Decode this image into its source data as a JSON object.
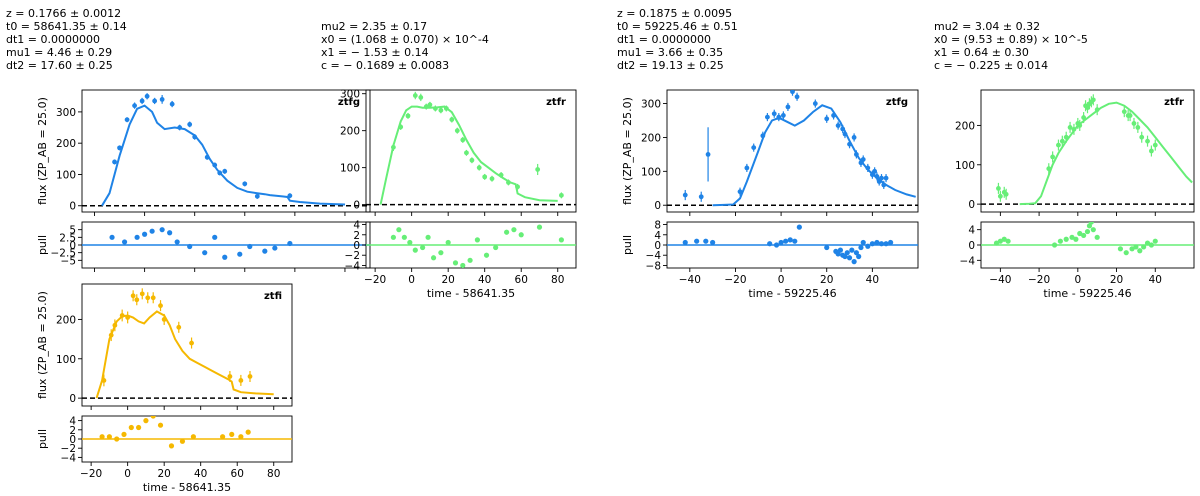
{
  "figures": [
    {
      "fit_params_left": [
        "z = 0.1766 ± 0.0012",
        "t0 = 58641.35 ± 0.14",
        "dt1 = 0.0000000",
        "mu1 = 4.46 ± 0.29",
        "dt2 = 17.60 ± 0.25"
      ],
      "fit_params_right": [
        "mu2 = 2.35 ± 0.17",
        "x0 = (1.068 ± 0.070) × 10^-4",
        "x1 = − 1.53 ± 0.14",
        "c = − 0.1689 ± 0.0083"
      ],
      "xlabel": "time - 58641.35",
      "ylabel": "flux (ZP_AB = 25.0)",
      "pull_label": "pull"
    },
    {
      "fit_params_left": [
        "z = 0.1875 ± 0.0095",
        "t0 = 59225.46 ± 0.51",
        "dt1 = 0.0000000",
        "mu1 = 3.66 ± 0.35",
        "dt2 = 19.13 ± 0.25"
      ],
      "fit_params_right": [
        "mu2 = 3.04 ± 0.32",
        "x0 = (9.53 ± 0.89) × 10^-5",
        "x1 = 0.64 ± 0.30",
        "c = − 0.225 ± 0.014"
      ],
      "xlabel": "time - 59225.46",
      "ylabel": "flux (ZP_AB = 25.0)",
      "pull_label": "pull"
    }
  ],
  "colors": {
    "ztfg": "#1f83e6",
    "ztfr": "#66ee77",
    "ztfi": "#f5b800",
    "zero_line": "#000000"
  },
  "chart_data": [
    {
      "type": "line",
      "figure": 1,
      "band": "ztfg",
      "xlim": [
        -25,
        90
      ],
      "ylim": [
        -20,
        370
      ],
      "yticks": [
        0,
        100,
        200,
        300
      ],
      "pull_ylim": [
        -7.5,
        7.5
      ],
      "pull_yticks": [
        -5.0,
        -2.5,
        0.0,
        2.5,
        5.0
      ],
      "model": {
        "x": [
          -17,
          -14,
          -10,
          -6,
          -3,
          0,
          3,
          5,
          8,
          12,
          16,
          20,
          23,
          26,
          29,
          33,
          37,
          41,
          45,
          48,
          50,
          55,
          57,
          58,
          62,
          70,
          80
        ],
        "y": [
          0,
          40,
          160,
          260,
          310,
          320,
          300,
          265,
          245,
          250,
          245,
          225,
          195,
          150,
          115,
          80,
          57,
          45,
          40,
          37,
          34,
          30,
          28,
          16,
          12,
          7,
          4
        ]
      },
      "points": {
        "x": [
          -12,
          -10,
          -7,
          -4,
          -1,
          1,
          4,
          7,
          11,
          14,
          18,
          20,
          25,
          28,
          30,
          32,
          40,
          45,
          58
        ],
        "y": [
          140,
          185,
          275,
          320,
          335,
          350,
          335,
          340,
          325,
          250,
          260,
          220,
          155,
          130,
          105,
          110,
          70,
          30,
          32
        ],
        "err": [
          8,
          8,
          8,
          10,
          10,
          10,
          10,
          14,
          10,
          9,
          9,
          9,
          8,
          8,
          8,
          8,
          8,
          8,
          8
        ]
      },
      "pull": {
        "x": [
          -13,
          -8,
          -3,
          0,
          3,
          7,
          10,
          13,
          18,
          24,
          28,
          32,
          38,
          42,
          48,
          52,
          58
        ],
        "y": [
          2.5,
          1.0,
          2.5,
          3.5,
          4.5,
          5.0,
          4.0,
          1.0,
          -0.5,
          -2.5,
          2.5,
          -4.0,
          -3.0,
          -0.5,
          -2.0,
          -1.0,
          0.5
        ]
      }
    },
    {
      "type": "line",
      "figure": 1,
      "band": "ztfr",
      "xlim": [
        -25,
        90
      ],
      "ylim": [
        -20,
        310
      ],
      "yticks": [
        0,
        100,
        200,
        300
      ],
      "xticks": [
        -20,
        0,
        20,
        40,
        60,
        80
      ],
      "pull_ylim": [
        -4.5,
        4.5
      ],
      "pull_yticks": [
        -4,
        -2,
        0,
        2,
        4
      ],
      "model": {
        "x": [
          -17,
          -14,
          -10,
          -6,
          -3,
          0,
          3,
          6,
          10,
          14,
          18,
          22,
          26,
          30,
          34,
          38,
          42,
          46,
          50,
          54,
          57,
          58,
          62,
          70,
          80
        ],
        "y": [
          0,
          70,
          160,
          225,
          255,
          265,
          265,
          262,
          262,
          263,
          265,
          250,
          215,
          175,
          140,
          115,
          100,
          85,
          72,
          60,
          55,
          30,
          20,
          12,
          10
        ]
      },
      "points": {
        "x": [
          -10,
          -6,
          -2,
          2,
          5,
          8,
          10,
          13,
          16,
          19,
          22,
          25,
          28,
          30,
          33,
          37,
          40,
          44,
          49,
          53,
          58,
          69,
          82
        ],
        "y": [
          155,
          210,
          240,
          295,
          290,
          265,
          270,
          260,
          255,
          260,
          230,
          200,
          175,
          140,
          120,
          100,
          75,
          70,
          80,
          60,
          48,
          95,
          25
        ],
        "err": [
          10,
          8,
          8,
          10,
          10,
          8,
          8,
          8,
          8,
          8,
          8,
          8,
          8,
          8,
          8,
          8,
          8,
          8,
          8,
          8,
          8,
          15,
          8
        ]
      },
      "pull": {
        "x": [
          -10,
          -7,
          -4,
          -1,
          2,
          6,
          9,
          12,
          16,
          20,
          24,
          28,
          32,
          36,
          41,
          46,
          52,
          56,
          60,
          70,
          82
        ],
        "y": [
          1.5,
          3.0,
          1.5,
          0.5,
          -1.0,
          -0.5,
          1.5,
          -2.5,
          -1.5,
          0.5,
          -3.5,
          -4.0,
          -3.0,
          1.0,
          -2.0,
          -0.5,
          2.5,
          3.0,
          2.0,
          3.5,
          1.0
        ]
      }
    },
    {
      "type": "line",
      "figure": 1,
      "band": "ztfi",
      "xlim": [
        -25,
        90
      ],
      "ylim": [
        -20,
        290
      ],
      "yticks": [
        0,
        100,
        200
      ],
      "xticks": [
        -20,
        0,
        20,
        40,
        60,
        80
      ],
      "pull_ylim": [
        -5,
        5
      ],
      "pull_yticks": [
        -4,
        -2,
        0,
        2,
        4
      ],
      "model": {
        "x": [
          -17,
          -14,
          -10,
          -6,
          -3,
          0,
          3,
          6,
          9,
          12,
          16,
          20,
          23,
          26,
          30,
          34,
          38,
          42,
          46,
          50,
          55,
          57,
          58,
          62,
          70,
          80
        ],
        "y": [
          0,
          45,
          150,
          195,
          208,
          210,
          205,
          195,
          190,
          205,
          220,
          210,
          185,
          150,
          120,
          100,
          90,
          80,
          70,
          60,
          48,
          42,
          22,
          15,
          12,
          10
        ]
      },
      "points": {
        "x": [
          -13,
          -9,
          -7,
          -3,
          0,
          3,
          5,
          8,
          11,
          14,
          18,
          20,
          28,
          35,
          56,
          62,
          67
        ],
        "y": [
          45,
          160,
          185,
          210,
          205,
          260,
          250,
          265,
          255,
          255,
          235,
          200,
          180,
          140,
          55,
          45,
          55
        ],
        "err": [
          15,
          15,
          15,
          15,
          15,
          14,
          14,
          14,
          14,
          14,
          14,
          14,
          14,
          14,
          14,
          14,
          14
        ]
      },
      "pull": {
        "x": [
          -14,
          -10,
          -6,
          -2,
          2,
          6,
          10,
          14,
          18,
          24,
          30,
          36,
          52,
          57,
          62,
          66
        ],
        "y": [
          0.5,
          0.5,
          0.0,
          1.0,
          2.5,
          2.5,
          4.0,
          5.0,
          3.0,
          -1.5,
          -0.5,
          0.5,
          0.5,
          1.0,
          0.5,
          1.5
        ]
      }
    },
    {
      "type": "line",
      "figure": 2,
      "band": "ztfg",
      "xlim": [
        -50,
        60
      ],
      "ylim": [
        -20,
        340
      ],
      "yticks": [
        0,
        100,
        200,
        300
      ],
      "xticks": [
        -40,
        -20,
        0,
        20,
        40
      ],
      "pull_ylim": [
        -9,
        9
      ],
      "pull_yticks": [
        -8,
        -4,
        0,
        4,
        8
      ],
      "model": {
        "x": [
          -30,
          -25,
          -21,
          -18,
          -15,
          -10,
          -7,
          -4,
          -2,
          0,
          3,
          6,
          10,
          14,
          18,
          22,
          26,
          30,
          34,
          38,
          42,
          46,
          50,
          55,
          59
        ],
        "y": [
          0,
          1,
          2,
          20,
          70,
          160,
          215,
          250,
          255,
          255,
          245,
          235,
          250,
          275,
          295,
          285,
          245,
          190,
          140,
          105,
          80,
          60,
          45,
          32,
          25
        ]
      },
      "points": {
        "x": [
          -42,
          -35,
          -32,
          -18,
          -15,
          -12,
          -8,
          -6,
          -3,
          -1,
          1,
          3,
          5,
          7,
          15,
          20,
          23,
          25,
          27,
          28,
          30,
          32,
          33,
          35,
          36,
          38,
          40,
          41,
          42,
          43,
          44,
          45,
          46
        ],
        "y": [
          30,
          25,
          150,
          40,
          110,
          170,
          205,
          260,
          270,
          260,
          265,
          290,
          335,
          320,
          300,
          255,
          265,
          235,
          225,
          210,
          180,
          200,
          150,
          125,
          135,
          110,
          90,
          100,
          85,
          70,
          80,
          60,
          80
        ],
        "err": [
          15,
          15,
          80,
          12,
          12,
          12,
          12,
          12,
          12,
          12,
          12,
          12,
          12,
          12,
          12,
          12,
          12,
          12,
          12,
          12,
          12,
          12,
          12,
          12,
          12,
          12,
          12,
          12,
          12,
          12,
          12,
          12,
          12
        ]
      },
      "pull": {
        "x": [
          -42,
          -37,
          -33,
          -30,
          -5,
          -2,
          0,
          2,
          4,
          6,
          8,
          20,
          24,
          25,
          26,
          27,
          28,
          29,
          30,
          31,
          32,
          33,
          34,
          35,
          36,
          38,
          40,
          42,
          44,
          46,
          48
        ],
        "y": [
          1.0,
          1.5,
          1.5,
          1.0,
          0.5,
          0.0,
          1.0,
          1.5,
          2.0,
          1.5,
          7.0,
          -1.0,
          -2.5,
          -3.5,
          -2.0,
          -4.0,
          -4.5,
          -3.0,
          -5.0,
          -2.0,
          -6.5,
          -3.0,
          -4.5,
          -1.0,
          1.0,
          -0.5,
          0.5,
          1.0,
          0.5,
          0.5,
          1.0
        ]
      }
    },
    {
      "type": "line",
      "figure": 2,
      "band": "ztfr",
      "xlim": [
        -50,
        60
      ],
      "ylim": [
        -20,
        290
      ],
      "yticks": [
        0,
        100,
        200
      ],
      "xticks": [
        -40,
        -20,
        0,
        20,
        40
      ],
      "pull_ylim": [
        -6,
        6
      ],
      "pull_yticks": [
        -4,
        0,
        4
      ],
      "model": {
        "x": [
          -30,
          -25,
          -22,
          -19,
          -16,
          -13,
          -10,
          -6,
          -3,
          0,
          4,
          8,
          12,
          16,
          20,
          24,
          28,
          32,
          36,
          40,
          44,
          48,
          52,
          56,
          59
        ],
        "y": [
          0,
          1,
          2,
          20,
          60,
          100,
          130,
          160,
          180,
          200,
          215,
          230,
          245,
          255,
          258,
          250,
          235,
          215,
          195,
          170,
          145,
          120,
          95,
          70,
          55
        ]
      },
      "points": {
        "x": [
          -41,
          -40,
          -38,
          -37,
          -15,
          -13,
          -10,
          -8,
          -6,
          -4,
          -2,
          0,
          1,
          3,
          4,
          5,
          6,
          7,
          8,
          10,
          24,
          26,
          27,
          29,
          31,
          33,
          36,
          38,
          40
        ],
        "y": [
          40,
          20,
          30,
          25,
          90,
          120,
          150,
          160,
          170,
          195,
          190,
          205,
          200,
          220,
          250,
          245,
          255,
          260,
          265,
          240,
          235,
          225,
          225,
          205,
          195,
          170,
          160,
          135,
          150
        ],
        "err": [
          14,
          14,
          14,
          14,
          14,
          14,
          14,
          14,
          14,
          14,
          14,
          14,
          14,
          14,
          14,
          14,
          14,
          14,
          14,
          14,
          14,
          14,
          14,
          14,
          14,
          14,
          14,
          14,
          14
        ]
      },
      "pull": {
        "x": [
          -42,
          -40,
          -38,
          -36,
          -12,
          -9,
          -6,
          -3,
          -1,
          1,
          3,
          5,
          6,
          7,
          8,
          10,
          22,
          25,
          28,
          30,
          32,
          34,
          36,
          38,
          40
        ],
        "y": [
          0.5,
          1.0,
          1.5,
          1.0,
          0.0,
          1.0,
          1.5,
          2.0,
          1.5,
          3.0,
          2.5,
          3.5,
          5.0,
          6.0,
          4.0,
          2.0,
          -1.0,
          -2.0,
          -1.0,
          -0.5,
          -1.5,
          -0.5,
          0.5,
          0.0,
          1.0
        ]
      }
    }
  ]
}
